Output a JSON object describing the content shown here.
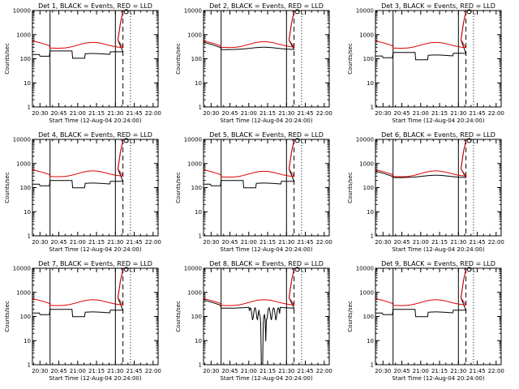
{
  "chart_data": [
    {
      "type": "line",
      "title": "Det 1, BLACK = Events, RED = LLD",
      "xlabel": "Start Time (12-Aug-04 20:24:00)",
      "ylabel": "Counts/sec",
      "ylog": true,
      "ylim": [
        1,
        10000
      ],
      "xlim": [
        "20:24",
        "22:04"
      ],
      "xticks": [
        "20:30",
        "20:45",
        "21:00",
        "21:15",
        "21:30",
        "21:45",
        "22:00"
      ],
      "yticks": [
        "1",
        "10",
        "100",
        "1000",
        "10000"
      ],
      "vlines": [
        {
          "x": "20:38",
          "style": "solid"
        },
        {
          "x": "21:30",
          "style": "solid"
        },
        {
          "x": "21:36",
          "style": "dashed"
        },
        {
          "x": "21:42",
          "style": "dotted"
        }
      ],
      "marker_label": "L",
      "series": [
        {
          "name": "Events",
          "color": "#000000",
          "profile": "low",
          "base": 150
        },
        {
          "name": "LLD",
          "color": "#dd0000",
          "profile": "smooth",
          "base": 280
        }
      ]
    },
    {
      "type": "line",
      "title": "Det 2, BLACK = Events, RED = LLD",
      "xlabel": "Start Time (12-Aug-04 20:24:00)",
      "ylabel": "Counts/sec",
      "ylog": true,
      "ylim": [
        1,
        10000
      ],
      "xlim": [
        "20:24",
        "22:04"
      ],
      "xticks": [
        "20:30",
        "20:45",
        "21:00",
        "21:15",
        "21:30",
        "21:45",
        "22:00"
      ],
      "yticks": [
        "1",
        "10",
        "100",
        "1000",
        "10000"
      ],
      "vlines": [
        {
          "x": "20:38",
          "style": "solid"
        },
        {
          "x": "21:30",
          "style": "solid"
        },
        {
          "x": "21:36",
          "style": "dashed"
        },
        {
          "x": "21:42",
          "style": "dotted"
        }
      ],
      "marker_label": "L",
      "series": [
        {
          "name": "Events",
          "color": "#000000",
          "profile": "close",
          "base": 240
        },
        {
          "name": "LLD",
          "color": "#dd0000",
          "profile": "smooth",
          "base": 300
        }
      ]
    },
    {
      "type": "line",
      "title": "Det 3, BLACK = Events, RED = LLD",
      "xlabel": "Start Time (12-Aug-04 20:24:00)",
      "ylabel": "Counts/sec",
      "ylog": true,
      "ylim": [
        1,
        10000
      ],
      "xlim": [
        "20:24",
        "22:04"
      ],
      "xticks": [
        "20:30",
        "20:45",
        "21:00",
        "21:15",
        "21:30",
        "21:45",
        "22:00"
      ],
      "yticks": [
        "1",
        "10",
        "100",
        "1000",
        "10000"
      ],
      "vlines": [
        {
          "x": "20:38",
          "style": "solid"
        },
        {
          "x": "21:30",
          "style": "solid"
        },
        {
          "x": "21:36",
          "style": "dashed"
        },
        {
          "x": "21:42",
          "style": "dotted"
        }
      ],
      "marker_label": "L",
      "series": [
        {
          "name": "Events",
          "color": "#000000",
          "profile": "low",
          "base": 130
        },
        {
          "name": "LLD",
          "color": "#dd0000",
          "profile": "smooth",
          "base": 280
        }
      ]
    },
    {
      "type": "line",
      "title": "Det 4, BLACK = Events, RED = LLD",
      "xlabel": "Start Time (12-Aug-04 20:24:00)",
      "ylabel": "Counts/sec",
      "ylog": true,
      "ylim": [
        1,
        10000
      ],
      "xlim": [
        "20:24",
        "22:04"
      ],
      "xticks": [
        "20:30",
        "20:45",
        "21:00",
        "21:15",
        "21:30",
        "21:45",
        "22:00"
      ],
      "yticks": [
        "1",
        "10",
        "100",
        "1000",
        "10000"
      ],
      "vlines": [
        {
          "x": "20:38",
          "style": "solid"
        },
        {
          "x": "21:30",
          "style": "solid"
        },
        {
          "x": "21:36",
          "style": "dashed"
        },
        {
          "x": "21:42",
          "style": "dotted"
        }
      ],
      "marker_label": "L",
      "series": [
        {
          "name": "Events",
          "color": "#000000",
          "profile": "low",
          "base": 140
        },
        {
          "name": "LLD",
          "color": "#dd0000",
          "profile": "smooth",
          "base": 290
        }
      ]
    },
    {
      "type": "line",
      "title": "Det 5, BLACK = Events, RED = LLD",
      "xlabel": "Start Time (12-Aug-04 20:24:00)",
      "ylabel": "Counts/sec",
      "ylog": true,
      "ylim": [
        1,
        10000
      ],
      "xlim": [
        "20:24",
        "22:04"
      ],
      "xticks": [
        "20:30",
        "20:45",
        "21:00",
        "21:15",
        "21:30",
        "21:45",
        "22:00"
      ],
      "yticks": [
        "1",
        "10",
        "100",
        "1000",
        "10000"
      ],
      "vlines": [
        {
          "x": "20:38",
          "style": "solid"
        },
        {
          "x": "21:30",
          "style": "solid"
        },
        {
          "x": "21:36",
          "style": "dashed"
        },
        {
          "x": "21:42",
          "style": "dotted"
        }
      ],
      "marker_label": "L",
      "series": [
        {
          "name": "Events",
          "color": "#000000",
          "profile": "low",
          "base": 140
        },
        {
          "name": "LLD",
          "color": "#dd0000",
          "profile": "smooth",
          "base": 280
        }
      ]
    },
    {
      "type": "line",
      "title": "Det 6, BLACK = Events, RED = LLD",
      "xlabel": "Start Time (12-Aug-04 20:24:00)",
      "ylabel": "Counts/sec",
      "ylog": true,
      "ylim": [
        1,
        10000
      ],
      "xlim": [
        "20:24",
        "22:04"
      ],
      "xticks": [
        "20:30",
        "20:45",
        "21:00",
        "21:15",
        "21:30",
        "21:45",
        "22:00"
      ],
      "yticks": [
        "1",
        "10",
        "100",
        "1000",
        "10000"
      ],
      "vlines": [
        {
          "x": "20:38",
          "style": "solid"
        },
        {
          "x": "21:30",
          "style": "solid"
        },
        {
          "x": "21:36",
          "style": "dashed"
        },
        {
          "x": "21:42",
          "style": "dotted"
        }
      ],
      "marker_label": "L",
      "series": [
        {
          "name": "Events",
          "color": "#000000",
          "profile": "close",
          "base": 260
        },
        {
          "name": "LLD",
          "color": "#dd0000",
          "profile": "smooth",
          "base": 290
        }
      ]
    },
    {
      "type": "line",
      "title": "Det 7, BLACK = Events, RED = LLD",
      "xlabel": "Start Time (12-Aug-04 20:24:00)",
      "ylabel": "Counts/sec",
      "ylog": true,
      "ylim": [
        1,
        10000
      ],
      "xlim": [
        "20:24",
        "22:04"
      ],
      "xticks": [
        "20:30",
        "20:45",
        "21:00",
        "21:15",
        "21:30",
        "21:45",
        "22:00"
      ],
      "yticks": [
        "1",
        "10",
        "100",
        "1000",
        "10000"
      ],
      "vlines": [
        {
          "x": "20:38",
          "style": "solid"
        },
        {
          "x": "21:30",
          "style": "solid"
        },
        {
          "x": "21:36",
          "style": "dashed"
        },
        {
          "x": "21:42",
          "style": "dotted"
        }
      ],
      "marker_label": "L",
      "series": [
        {
          "name": "Events",
          "color": "#000000",
          "profile": "low",
          "base": 140
        },
        {
          "name": "LLD",
          "color": "#dd0000",
          "profile": "smooth",
          "base": 290
        }
      ]
    },
    {
      "type": "line",
      "title": "Det 8, BLACK = Events, RED = LLD",
      "xlabel": "Start Time (12-Aug-04 20:24:00)",
      "ylabel": "Counts/sec",
      "ylog": true,
      "ylim": [
        1,
        10000
      ],
      "xlim": [
        "20:24",
        "22:04"
      ],
      "xticks": [
        "20:30",
        "20:45",
        "21:00",
        "21:15",
        "21:30",
        "21:45",
        "22:00"
      ],
      "yticks": [
        "1",
        "10",
        "100",
        "1000",
        "10000"
      ],
      "vlines": [
        {
          "x": "20:38",
          "style": "solid"
        },
        {
          "x": "21:30",
          "style": "solid"
        },
        {
          "x": "21:36",
          "style": "dashed"
        },
        {
          "x": "21:42",
          "style": "dotted"
        }
      ],
      "marker_label": "L",
      "series": [
        {
          "name": "Events",
          "color": "#000000",
          "profile": "noisy",
          "base": 220
        },
        {
          "name": "LLD",
          "color": "#dd0000",
          "profile": "smooth",
          "base": 290
        }
      ]
    },
    {
      "type": "line",
      "title": "Det 9, BLACK = Events, RED = LLD",
      "xlabel": "Start Time (12-Aug-04 20:24:00)",
      "ylabel": "Counts/sec",
      "ylog": true,
      "ylim": [
        1,
        10000
      ],
      "xlim": [
        "20:24",
        "22:04"
      ],
      "xticks": [
        "20:30",
        "20:45",
        "21:00",
        "21:15",
        "21:30",
        "21:45",
        "22:00"
      ],
      "yticks": [
        "1",
        "10",
        "100",
        "1000",
        "10000"
      ],
      "vlines": [
        {
          "x": "20:38",
          "style": "solid"
        },
        {
          "x": "21:30",
          "style": "solid"
        },
        {
          "x": "21:36",
          "style": "dashed"
        },
        {
          "x": "21:42",
          "style": "dotted"
        }
      ],
      "marker_label": "L",
      "series": [
        {
          "name": "Events",
          "color": "#000000",
          "profile": "low",
          "base": 140
        },
        {
          "name": "LLD",
          "color": "#dd0000",
          "profile": "smooth",
          "base": 290
        }
      ]
    }
  ]
}
